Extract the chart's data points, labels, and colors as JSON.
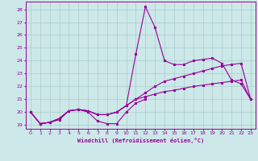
{
  "xlabel": "Windchill (Refroidissement éolien,°C)",
  "bg_color": "#cce8e8",
  "grid_color": "#aacccc",
  "line_color": "#990099",
  "x_data": [
    0,
    1,
    2,
    3,
    4,
    5,
    6,
    7,
    8,
    9,
    10,
    11,
    12,
    13,
    14,
    15,
    16,
    17,
    18,
    19,
    20,
    21,
    22,
    23
  ],
  "line_spike": [
    20.0,
    19.1,
    19.2,
    19.5,
    20.1,
    20.2,
    20.1,
    19.8,
    19.8,
    20.0,
    20.5,
    24.5,
    28.2,
    26.6,
    24.0,
    23.7,
    23.7,
    24.0,
    24.1,
    24.2,
    23.8,
    22.5,
    22.2,
    21.0
  ],
  "line_upper": [
    20.0,
    19.1,
    19.2,
    19.5,
    20.1,
    20.2,
    20.1,
    19.8,
    19.8,
    20.0,
    20.5,
    21.0,
    21.5,
    22.0,
    22.4,
    22.6,
    22.8,
    23.0,
    23.2,
    23.4,
    23.6,
    23.7,
    23.8,
    21.0
  ],
  "line_lower": [
    20.0,
    19.1,
    19.2,
    19.5,
    20.1,
    20.2,
    20.1,
    19.8,
    19.8,
    20.0,
    20.5,
    21.0,
    21.2,
    21.4,
    21.6,
    21.7,
    21.85,
    22.0,
    22.1,
    22.2,
    22.3,
    22.4,
    22.5,
    21.0
  ],
  "line_zigzag": [
    20.0,
    19.1,
    19.2,
    19.4,
    20.1,
    20.2,
    20.0,
    19.3,
    19.1,
    19.1,
    20.0,
    20.7,
    21.0,
    null,
    null,
    null,
    null,
    null,
    null,
    null,
    null,
    null,
    null,
    null
  ],
  "xlim": [
    -0.5,
    23.5
  ],
  "ylim": [
    18.7,
    28.6
  ],
  "yticks": [
    19,
    20,
    21,
    22,
    23,
    24,
    25,
    26,
    27,
    28
  ],
  "xticks": [
    0,
    1,
    2,
    3,
    4,
    5,
    6,
    7,
    8,
    9,
    10,
    11,
    12,
    13,
    14,
    15,
    16,
    17,
    18,
    19,
    20,
    21,
    22,
    23
  ]
}
